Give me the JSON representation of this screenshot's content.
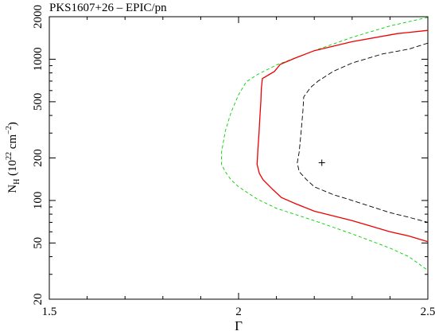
{
  "chart_data": {
    "type": "line",
    "title": "PKS1607+26 – EPIC/pn",
    "xlabel": "Γ",
    "ylabel": {
      "prefix": "N",
      "sub": "H",
      "mid": " (10",
      "sup1": "22",
      "mid2": " cm",
      "sup2": "−2",
      "suffix": ")"
    },
    "xlim": [
      1.5,
      2.5
    ],
    "ylim": [
      20,
      2000
    ],
    "yscale": "log",
    "x_ticks": [
      "1.5",
      "2",
      "2.5"
    ],
    "y_ticks": [
      "20",
      "50",
      "100",
      "200",
      "500",
      "1000",
      "2000"
    ],
    "best_fit": {
      "x": 2.22,
      "y": 185
    },
    "series": [
      {
        "color": "#00d000",
        "dash": "4,3",
        "points": [
          [
            2.5,
            1980
          ],
          [
            2.4,
            1720
          ],
          [
            2.3,
            1430
          ],
          [
            2.2,
            1150
          ],
          [
            2.1,
            910
          ],
          [
            2.05,
            780
          ],
          [
            2.02,
            690
          ],
          [
            2.0,
            560
          ],
          [
            1.98,
            420
          ],
          [
            1.965,
            310
          ],
          [
            1.955,
            220
          ],
          [
            1.955,
            180
          ],
          [
            1.965,
            160
          ],
          [
            1.98,
            140
          ],
          [
            2.0,
            125
          ],
          [
            2.05,
            102
          ],
          [
            2.1,
            88
          ],
          [
            2.2,
            72
          ],
          [
            2.3,
            58
          ],
          [
            2.4,
            46
          ],
          [
            2.45,
            40
          ],
          [
            2.5,
            32
          ]
        ]
      },
      {
        "color": "#ee0000",
        "dash": "",
        "points": [
          [
            2.5,
            1600
          ],
          [
            2.42,
            1520
          ],
          [
            2.3,
            1330
          ],
          [
            2.2,
            1150
          ],
          [
            2.15,
            1020
          ],
          [
            2.11,
            920
          ],
          [
            2.095,
            820
          ],
          [
            2.063,
            730
          ],
          [
            2.06,
            620
          ],
          [
            2.059,
            510
          ],
          [
            2.056,
            380
          ],
          [
            2.054,
            300
          ],
          [
            2.051,
            230
          ],
          [
            2.049,
            180
          ],
          [
            2.055,
            155
          ],
          [
            2.065,
            140
          ],
          [
            2.09,
            120
          ],
          [
            2.113,
            105
          ],
          [
            2.15,
            95
          ],
          [
            2.2,
            84
          ],
          [
            2.3,
            72
          ],
          [
            2.4,
            60
          ],
          [
            2.45,
            56
          ],
          [
            2.5,
            51
          ]
        ]
      },
      {
        "color": "#000000",
        "dash": "6,3",
        "points": [
          [
            2.5,
            1300
          ],
          [
            2.45,
            1180
          ],
          [
            2.38,
            1090
          ],
          [
            2.3,
            940
          ],
          [
            2.25,
            820
          ],
          [
            2.21,
            700
          ],
          [
            2.19,
            630
          ],
          [
            2.172,
            540
          ],
          [
            2.17,
            430
          ],
          [
            2.165,
            300
          ],
          [
            2.16,
            220
          ],
          [
            2.155,
            185
          ],
          [
            2.16,
            160
          ],
          [
            2.18,
            140
          ],
          [
            2.2,
            125
          ],
          [
            2.25,
            110
          ],
          [
            2.3,
            100
          ],
          [
            2.4,
            82
          ],
          [
            2.45,
            76
          ],
          [
            2.5,
            70
          ]
        ]
      }
    ]
  }
}
